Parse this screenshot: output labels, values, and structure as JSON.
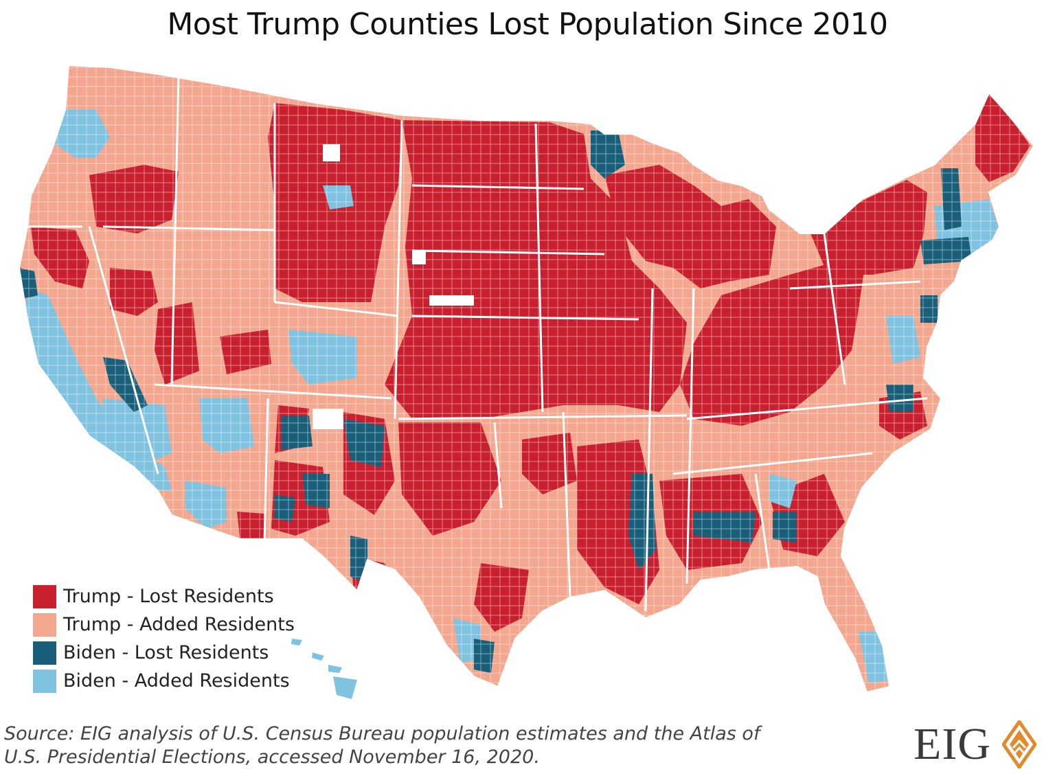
{
  "title": "Most Trump Counties Lost Population Since 2010",
  "legend": [
    {
      "label": "Trump - Lost Residents",
      "color": "#c9202f"
    },
    {
      "label": "Trump - Added Residents",
      "color": "#f4a78f"
    },
    {
      "label": "Biden - Lost Residents",
      "color": "#1a5f7a"
    },
    {
      "label": "Biden - Added Residents",
      "color": "#7fc3e0"
    }
  ],
  "source": {
    "line1": "Source: EIG analysis of U.S. Census Bureau population estimates and the Atlas of",
    "line2": "U.S. Presidential Elections, accessed November 16, 2020."
  },
  "logo": {
    "text": "EIG",
    "accent": "#e08a2c",
    "icon": "diamond-logo-icon"
  },
  "map_colors": {
    "trump_lost": "#c9202f",
    "trump_added": "#f4a78f",
    "biden_lost": "#1a5f7a",
    "biden_added": "#7fc3e0",
    "no_data": "#ffffff",
    "border": "#ffffff"
  }
}
